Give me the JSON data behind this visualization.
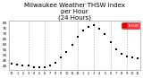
{
  "title": "Milwaukee Weather THSW Index per Hour (24 Hours)",
  "title_fontsize": 5.0,
  "background_color": "#ffffff",
  "plot_bg_color": "#ffffff",
  "dot_color": "#ff0000",
  "center_dot_color": "#000000",
  "grid_color": "#aaaaaa",
  "text_color": "#000000",
  "axis_color": "#888888",
  "x_hours": [
    0,
    1,
    2,
    3,
    4,
    5,
    6,
    7,
    8,
    9,
    10,
    11,
    12,
    13,
    14,
    15,
    16,
    17,
    18,
    19,
    20,
    21,
    22,
    23
  ],
  "y_values": [
    42,
    41,
    40,
    40,
    39,
    39,
    39,
    40,
    43,
    48,
    53,
    60,
    67,
    73,
    76,
    78,
    75,
    70,
    62,
    55,
    51,
    49,
    48,
    47
  ],
  "ylim": [
    36,
    82
  ],
  "yticks": [
    40,
    45,
    50,
    55,
    60,
    65,
    70,
    75,
    80
  ],
  "ytick_labels": [
    "40",
    "45",
    "50",
    "55",
    "60",
    "65",
    "70",
    "75",
    "80"
  ],
  "x_grid_positions": [
    3,
    6,
    9,
    12,
    15,
    18,
    21
  ],
  "xtick_positions": [
    0,
    1,
    2,
    3,
    4,
    5,
    6,
    7,
    8,
    9,
    10,
    11,
    12,
    13,
    14,
    15,
    16,
    17,
    18,
    19,
    20,
    21,
    22,
    23
  ],
  "xtick_labels": [
    "12",
    "1",
    "2",
    "3",
    "4",
    "5",
    "6",
    "7",
    "8",
    "9",
    "10",
    "11",
    "12",
    "1",
    "2",
    "3",
    "4",
    "5",
    "6",
    "7",
    "8",
    "9",
    "10",
    "11"
  ],
  "legend_label": "THSW",
  "legend_dot_color": "#ff0000",
  "legend_bg": "#ff0000",
  "legend_text_color": "#ffffff"
}
